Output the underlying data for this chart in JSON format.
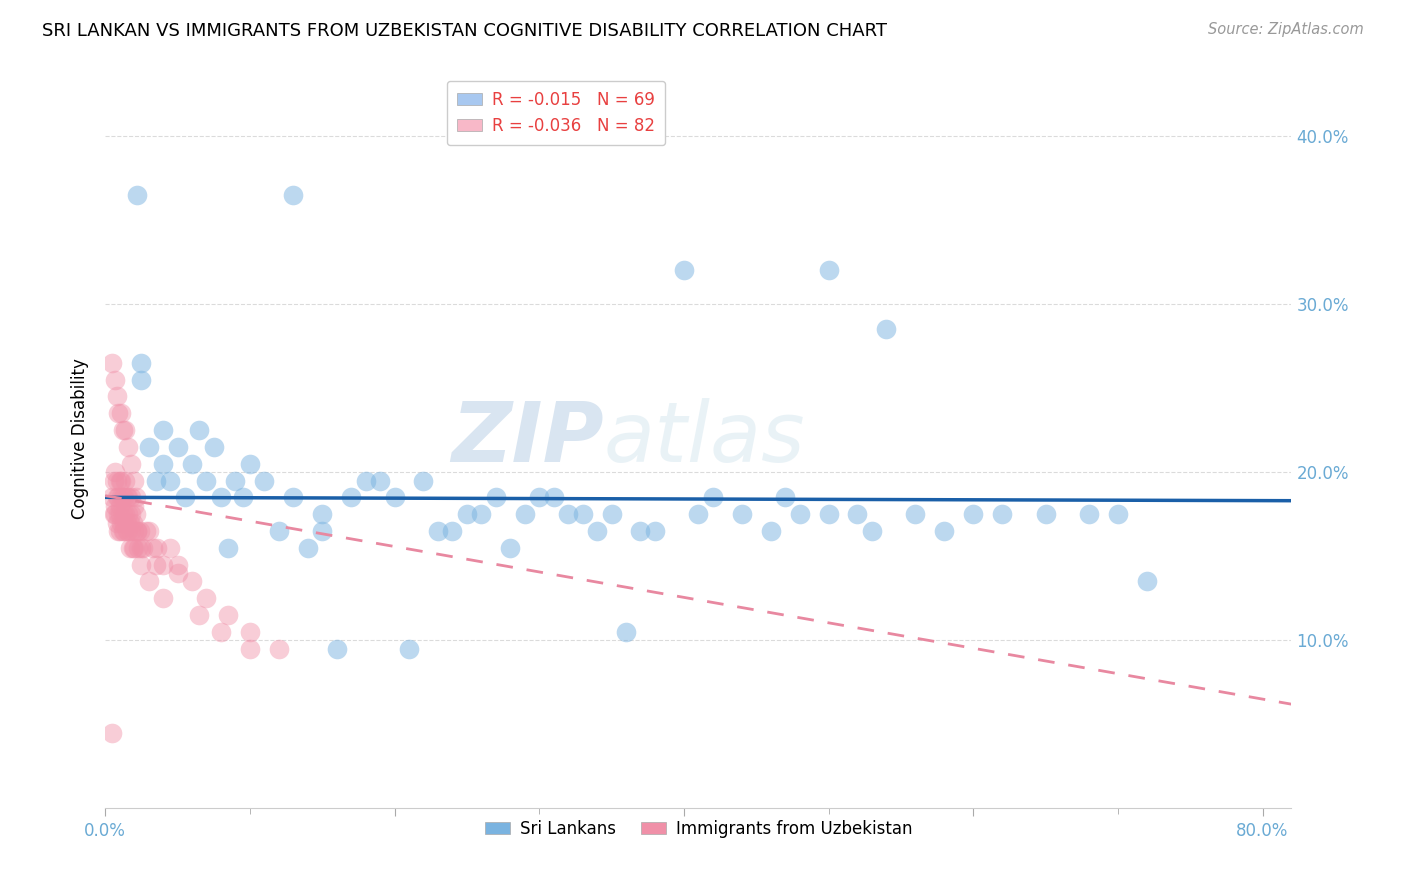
{
  "title": "SRI LANKAN VS IMMIGRANTS FROM UZBEKISTAN COGNITIVE DISABILITY CORRELATION CHART",
  "source": "Source: ZipAtlas.com",
  "ylabel": "Cognitive Disability",
  "xlim": [
    0.0,
    0.82
  ],
  "ylim": [
    0.0,
    0.44
  ],
  "ytick_vals": [
    0.1,
    0.2,
    0.3,
    0.4
  ],
  "xtick_vals": [
    0.0,
    0.2,
    0.4,
    0.6,
    0.8
  ],
  "watermark_zip": "ZIP",
  "watermark_atlas": "atlas",
  "blue_color": "#7ab3e0",
  "pink_color": "#f090a8",
  "blue_line_color": "#1a5fa8",
  "pink_line_color": "#e888a0",
  "tick_color": "#6aaad4",
  "grid_color": "#cccccc",
  "background_color": "#ffffff",
  "legend_blue_color": "#a8c8f0",
  "legend_pink_color": "#f8b8c8",
  "blue_line_y0": 0.185,
  "blue_line_y1": 0.183,
  "pink_line_y0": 0.186,
  "pink_line_y1": 0.062,
  "sri_lankans_x": [
    0.022,
    0.13,
    0.4,
    0.5,
    0.54,
    0.025,
    0.025,
    0.03,
    0.035,
    0.04,
    0.04,
    0.045,
    0.05,
    0.06,
    0.065,
    0.07,
    0.08,
    0.09,
    0.1,
    0.11,
    0.13,
    0.15,
    0.17,
    0.19,
    0.22,
    0.25,
    0.27,
    0.3,
    0.32,
    0.35,
    0.38,
    0.41,
    0.44,
    0.47,
    0.5,
    0.53,
    0.56,
    0.6,
    0.65,
    0.7,
    0.72,
    0.2,
    0.24,
    0.28,
    0.33,
    0.37,
    0.15,
    0.18,
    0.055,
    0.075,
    0.085,
    0.095,
    0.12,
    0.14,
    0.16,
    0.21,
    0.23,
    0.26,
    0.29,
    0.31,
    0.34,
    0.36,
    0.42,
    0.46,
    0.48,
    0.52,
    0.58,
    0.62,
    0.68
  ],
  "sri_lankans_y": [
    0.365,
    0.365,
    0.32,
    0.32,
    0.285,
    0.265,
    0.255,
    0.215,
    0.195,
    0.205,
    0.225,
    0.195,
    0.215,
    0.205,
    0.225,
    0.195,
    0.185,
    0.195,
    0.205,
    0.195,
    0.185,
    0.175,
    0.185,
    0.195,
    0.195,
    0.175,
    0.185,
    0.185,
    0.175,
    0.175,
    0.165,
    0.175,
    0.175,
    0.185,
    0.175,
    0.165,
    0.175,
    0.175,
    0.175,
    0.175,
    0.135,
    0.185,
    0.165,
    0.155,
    0.175,
    0.165,
    0.165,
    0.195,
    0.185,
    0.215,
    0.155,
    0.185,
    0.165,
    0.155,
    0.095,
    0.095,
    0.165,
    0.175,
    0.175,
    0.185,
    0.165,
    0.105,
    0.185,
    0.165,
    0.175,
    0.175,
    0.165,
    0.175,
    0.175
  ],
  "uzbekistan_x": [
    0.005,
    0.006,
    0.006,
    0.007,
    0.007,
    0.007,
    0.008,
    0.008,
    0.008,
    0.009,
    0.009,
    0.009,
    0.01,
    0.01,
    0.01,
    0.01,
    0.011,
    0.011,
    0.011,
    0.012,
    0.012,
    0.012,
    0.013,
    0.013,
    0.013,
    0.014,
    0.014,
    0.015,
    0.015,
    0.015,
    0.016,
    0.016,
    0.016,
    0.017,
    0.017,
    0.018,
    0.018,
    0.018,
    0.019,
    0.019,
    0.02,
    0.02,
    0.02,
    0.021,
    0.021,
    0.022,
    0.023,
    0.024,
    0.025,
    0.026,
    0.028,
    0.03,
    0.033,
    0.036,
    0.04,
    0.045,
    0.05,
    0.06,
    0.07,
    0.085,
    0.1,
    0.12,
    0.005,
    0.007,
    0.008,
    0.009,
    0.011,
    0.012,
    0.014,
    0.016,
    0.018,
    0.02,
    0.022,
    0.025,
    0.03,
    0.035,
    0.04,
    0.05,
    0.065,
    0.08,
    0.1,
    0.005
  ],
  "uzbekistan_y": [
    0.185,
    0.175,
    0.195,
    0.18,
    0.2,
    0.175,
    0.185,
    0.17,
    0.195,
    0.175,
    0.185,
    0.165,
    0.18,
    0.175,
    0.195,
    0.165,
    0.185,
    0.17,
    0.195,
    0.175,
    0.165,
    0.185,
    0.17,
    0.185,
    0.165,
    0.175,
    0.195,
    0.185,
    0.17,
    0.165,
    0.175,
    0.185,
    0.165,
    0.17,
    0.155,
    0.175,
    0.185,
    0.165,
    0.17,
    0.155,
    0.18,
    0.165,
    0.155,
    0.175,
    0.185,
    0.165,
    0.155,
    0.165,
    0.155,
    0.155,
    0.165,
    0.165,
    0.155,
    0.155,
    0.145,
    0.155,
    0.14,
    0.135,
    0.125,
    0.115,
    0.105,
    0.095,
    0.265,
    0.255,
    0.245,
    0.235,
    0.235,
    0.225,
    0.225,
    0.215,
    0.205,
    0.195,
    0.165,
    0.145,
    0.135,
    0.145,
    0.125,
    0.145,
    0.115,
    0.105,
    0.095,
    0.045
  ]
}
